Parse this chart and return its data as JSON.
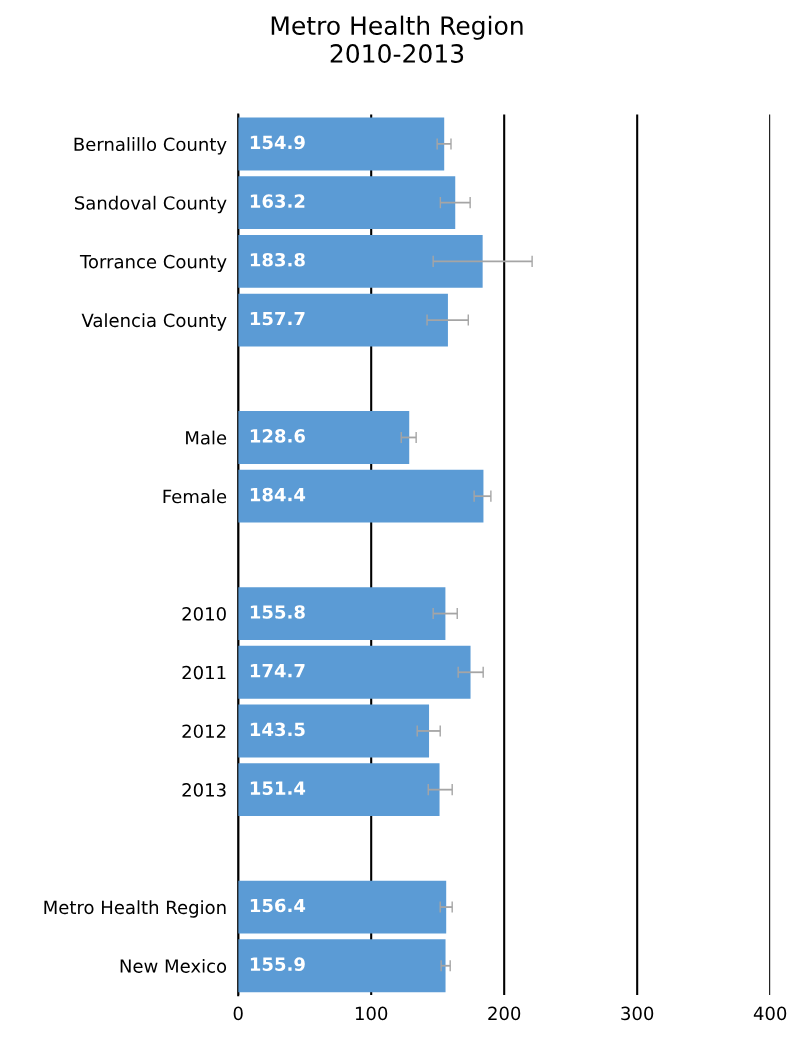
{
  "chart_data": {
    "type": "bar",
    "orientation": "horizontal",
    "title": "Metro Health Region\n2010-2013",
    "categories": [
      "Bernalillo County",
      "Sandoval County",
      "Torrance County",
      "Valencia County",
      null,
      "Male",
      "Female",
      null,
      "2010",
      "2011",
      "2012",
      "2013",
      null,
      "Metro Health Region",
      "New Mexico"
    ],
    "values": [
      154.9,
      163.2,
      183.8,
      157.7,
      null,
      128.6,
      184.4,
      null,
      155.8,
      174.7,
      143.5,
      151.4,
      null,
      156.4,
      155.9
    ],
    "errors": [
      [
        149.6,
        160
      ],
      [
        152,
        174.4
      ],
      [
        146.6,
        221
      ],
      [
        142,
        173
      ],
      null,
      [
        122.6,
        133.8
      ],
      [
        177.4,
        190
      ],
      null,
      [
        146.6,
        164.7
      ],
      [
        165.4,
        184.2
      ],
      [
        134.6,
        151.9
      ],
      [
        142.9,
        160.9
      ],
      null,
      [
        151.9,
        160.9
      ],
      [
        152.6,
        159.4
      ]
    ],
    "color": "#5b9bd5",
    "xlim": [
      0,
      400
    ],
    "xticks": [
      0,
      100,
      200,
      300,
      400
    ],
    "grid": "x",
    "data_labels": true
  }
}
